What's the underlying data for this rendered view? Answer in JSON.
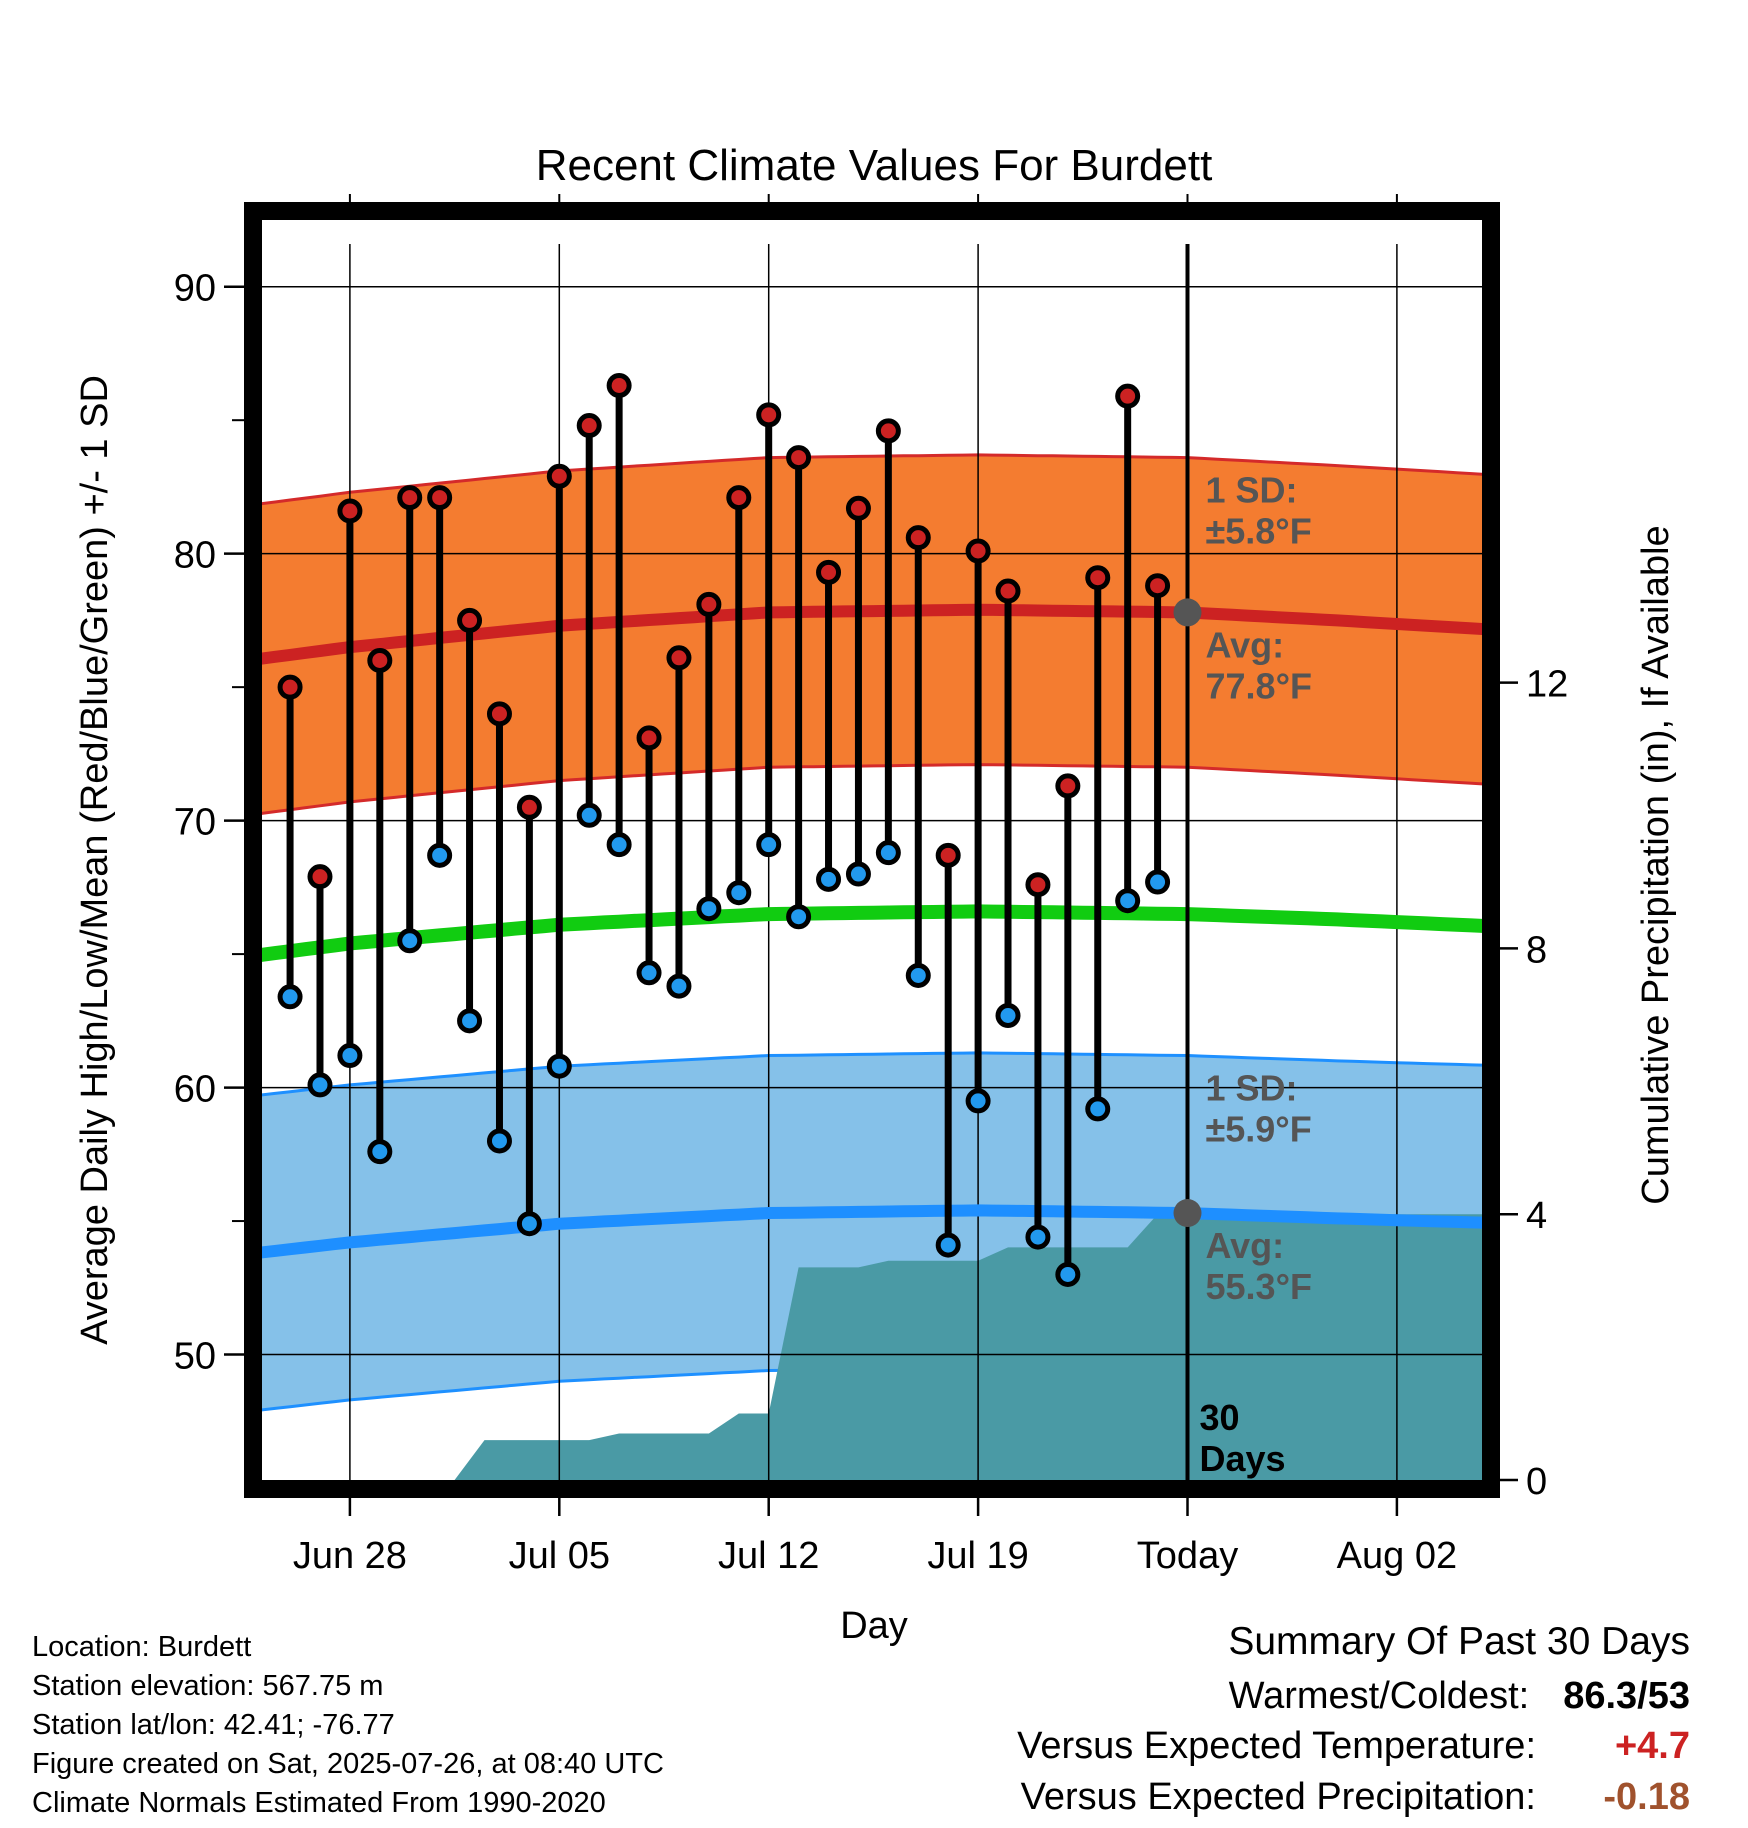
{
  "chart_data": {
    "type": "line",
    "title": "Recent Climate Values For Burdett",
    "xlabel": "Day",
    "ylabel": "Average Daily High/Low/Mean (Red/Blue/Green) +/- 1 SD",
    "y2label": "Cumulative Precipitation (in), If Available",
    "x_range_days": [
      -33.5,
      11
    ],
    "ylim": [
      45.3,
      91.6
    ],
    "y2lim": [
      0,
      18.6
    ],
    "x_ticks": [
      {
        "day": -28,
        "label": "Jun 28"
      },
      {
        "day": -21,
        "label": "Jul 05"
      },
      {
        "day": -14,
        "label": "Jul 12"
      },
      {
        "day": -7,
        "label": "Jul 19"
      },
      {
        "day": 0,
        "label": "Today"
      },
      {
        "day": 7,
        "label": "Aug 02"
      }
    ],
    "y_ticks": [
      50,
      60,
      70,
      80,
      90
    ],
    "y2_ticks": [
      0,
      4,
      8,
      12
    ],
    "grid": true,
    "days": [
      -30,
      -29,
      -28,
      -27,
      -26,
      -25,
      -24,
      -23,
      -22,
      -21,
      -20,
      -19,
      -18,
      -17,
      -16,
      -15,
      -14,
      -13,
      -12,
      -11,
      -10,
      -9,
      -8,
      -7,
      -6,
      -5,
      -4,
      -3,
      -2,
      -1
    ],
    "series": [
      {
        "name": "High",
        "color": "#cc2222",
        "values": [
          75.0,
          67.9,
          81.6,
          76.0,
          82.1,
          82.1,
          77.5,
          74.0,
          70.5,
          82.9,
          84.8,
          86.3,
          73.1,
          76.1,
          78.1,
          82.1,
          85.2,
          83.6,
          79.3,
          81.7,
          84.6,
          80.6,
          68.7,
          80.1,
          78.6,
          67.6,
          71.3,
          79.1,
          85.9,
          78.8
        ]
      },
      {
        "name": "Low",
        "color": "#2299ee",
        "values": [
          63.4,
          60.1,
          61.2,
          57.6,
          65.5,
          68.7,
          62.5,
          58.0,
          54.9,
          60.8,
          70.2,
          69.1,
          64.3,
          63.8,
          66.7,
          67.3,
          69.1,
          66.4,
          67.8,
          68.0,
          68.8,
          64.2,
          54.1,
          59.5,
          62.7,
          54.4,
          53.0,
          59.2,
          67.0,
          67.7
        ]
      }
    ],
    "normals": {
      "days": [
        -33.5,
        -28,
        -21,
        -14,
        -7,
        0,
        5,
        11
      ],
      "high_avg": [
        75.7,
        76.5,
        77.3,
        77.8,
        77.9,
        77.8,
        77.5,
        77.1
      ],
      "low_avg": [
        53.5,
        54.2,
        54.9,
        55.3,
        55.4,
        55.3,
        55.1,
        54.9
      ],
      "mean_avg": [
        64.6,
        65.4,
        66.1,
        66.5,
        66.6,
        66.5,
        66.3,
        66.0
      ],
      "high_sd": 5.8,
      "low_sd": 5.9
    },
    "precip": {
      "days": [
        -33.5,
        -24.5,
        -23.5,
        -21,
        -20,
        -19,
        -17,
        -16,
        -15,
        -14,
        -13,
        -11,
        -10,
        -8,
        -7,
        -6,
        -5,
        -4,
        -2,
        -1,
        0,
        11
      ],
      "values": [
        0,
        0,
        0.6,
        0.6,
        0.6,
        0.7,
        0.7,
        0.7,
        1.0,
        1.0,
        3.2,
        3.2,
        3.3,
        3.3,
        3.3,
        3.5,
        3.5,
        3.5,
        3.5,
        4.0,
        4.0,
        4.0
      ]
    },
    "annotations": {
      "high_sd": [
        "1 SD:",
        "±5.8°F"
      ],
      "high_avg": [
        "Avg:",
        "77.8°F"
      ],
      "low_sd": [
        "1 SD:",
        "±5.9°F"
      ],
      "low_avg": [
        "Avg:",
        "55.3°F"
      ],
      "window": [
        "30",
        "Days"
      ]
    }
  },
  "info": {
    "location": "Location: Burdett",
    "elevation": "Station elevation: 567.75 m",
    "latlon": "Station lat/lon: 42.41; -76.77",
    "created": "Figure created on Sat, 2025-07-26, at 08:40 UTC",
    "normals": "Climate Normals Estimated From 1990-2020"
  },
  "summary": {
    "title": "Summary Of Past 30 Days",
    "warmest_label": "Warmest/Coldest:",
    "warmest_value": "86.3/53",
    "temp_label": "Versus Expected Temperature:",
    "temp_value": "+4.7",
    "temp_color": "#cc2222",
    "precip_label": "Versus Expected Precipitation:",
    "precip_value": "-0.18",
    "precip_color": "#a0522d"
  }
}
